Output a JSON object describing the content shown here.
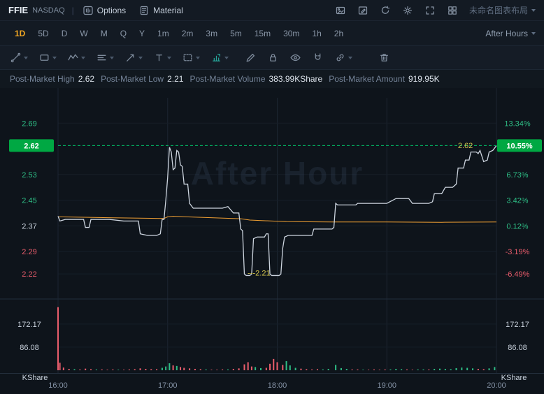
{
  "header": {
    "symbol": "FFIE",
    "exchange": "NASDAQ",
    "divider": "|",
    "tabs": [
      {
        "label": "Options"
      },
      {
        "label": "Material"
      }
    ],
    "layout_name": "未命名图表布局",
    "icons": [
      "snapshot-icon",
      "edit-icon",
      "refresh-icon",
      "settings-icon",
      "fullscreen-icon",
      "layout-grid-icon"
    ]
  },
  "timeframe_bar": {
    "items": [
      "1D",
      "5D",
      "D",
      "W",
      "M",
      "Q",
      "Y",
      "1m",
      "2m",
      "3m",
      "5m",
      "15m",
      "30m",
      "1h",
      "2h"
    ],
    "active": "1D",
    "session_selector": "After Hours"
  },
  "drawing_toolbar": {
    "tools": [
      "trend-line-tool",
      "shape-tool",
      "wave-tool",
      "lines-tool",
      "ray-tool",
      "text-tool",
      "region-tool",
      "position-tool",
      "brush-tool",
      "lock-tool",
      "visibility-tool",
      "magnet-tool",
      "link-tool",
      "delete-tool"
    ]
  },
  "info_bar": {
    "items": [
      {
        "label": "Post-Market High",
        "value": "2.62"
      },
      {
        "label": "Post-Market Low",
        "value": "2.21"
      },
      {
        "label": "Post-Market Volume",
        "value": "383.99KShare"
      },
      {
        "label": "Post-Market Amount",
        "value": "919.95K"
      }
    ]
  },
  "chart_data": {
    "type": "line",
    "session": "after-hours",
    "watermark": "After Hour",
    "x": {
      "labels": [
        "16:00",
        "17:00",
        "18:00",
        "19:00",
        "20:00"
      ],
      "start_min": 0,
      "end_min": 240
    },
    "price_range": [
      2.155,
      2.769
    ],
    "price_rows": [
      {
        "price": "2.69",
        "price_color": "up",
        "pct": "13.34%",
        "pct_color": "up"
      },
      {
        "price": "2.62",
        "pct": "10.55%",
        "current": true
      },
      {
        "price": "2.53",
        "price_color": "up",
        "pct": "6.73%",
        "pct_color": "up"
      },
      {
        "price": "2.45",
        "price_color": "up",
        "pct": "3.42%",
        "pct_color": "up"
      },
      {
        "price": "2.37",
        "price_color": "neutral",
        "pct": "0.12%",
        "pct_color": "up"
      },
      {
        "price": "2.29",
        "price_color": "down",
        "pct": "-3.19%",
        "pct_color": "down"
      },
      {
        "price": "2.22",
        "price_color": "down",
        "pct": "-6.49%",
        "pct_color": "down"
      }
    ],
    "current": {
      "price": "2.62",
      "pct": "10.55%"
    },
    "high_annotation": {
      "t": 223,
      "price": 2.62,
      "label": "2.62"
    },
    "low_annotation": {
      "t": 110,
      "price": 2.21,
      "label": "---2.21"
    },
    "price_series": [
      [
        0,
        2.4
      ],
      [
        1,
        2.385
      ],
      [
        4,
        2.39
      ],
      [
        10,
        2.39
      ],
      [
        14,
        2.39
      ],
      [
        15,
        2.365
      ],
      [
        17,
        2.365
      ],
      [
        18,
        2.39
      ],
      [
        28,
        2.39
      ],
      [
        36,
        2.385
      ],
      [
        44,
        2.385
      ],
      [
        45,
        2.345
      ],
      [
        49,
        2.34
      ],
      [
        54,
        2.34
      ],
      [
        56,
        2.345
      ],
      [
        57,
        2.39
      ],
      [
        58,
        2.39
      ],
      [
        59,
        2.45
      ],
      [
        60,
        2.52
      ],
      [
        61,
        2.615
      ],
      [
        62,
        2.6
      ],
      [
        63,
        2.545
      ],
      [
        64,
        2.55
      ],
      [
        65,
        2.605
      ],
      [
        66,
        2.6
      ],
      [
        67,
        2.56
      ],
      [
        68,
        2.555
      ],
      [
        69,
        2.5
      ],
      [
        71,
        2.5
      ],
      [
        72,
        2.44
      ],
      [
        74,
        2.425
      ],
      [
        90,
        2.425
      ],
      [
        93,
        2.43
      ],
      [
        96,
        2.41
      ],
      [
        99,
        2.41
      ],
      [
        100,
        2.36
      ],
      [
        101,
        2.355
      ],
      [
        102,
        2.22
      ],
      [
        103,
        2.215
      ],
      [
        105,
        2.215
      ],
      [
        106,
        2.22
      ],
      [
        107,
        2.33
      ],
      [
        109,
        2.335
      ],
      [
        113,
        2.335
      ],
      [
        114,
        2.345
      ],
      [
        115,
        2.345
      ],
      [
        116,
        2.22
      ],
      [
        117,
        2.215
      ],
      [
        121,
        2.215
      ],
      [
        122,
        2.22
      ],
      [
        123,
        2.3
      ],
      [
        124,
        2.335
      ],
      [
        126,
        2.34
      ],
      [
        139,
        2.34
      ],
      [
        140,
        2.36
      ],
      [
        150,
        2.36
      ],
      [
        151,
        2.365
      ],
      [
        152,
        2.44
      ],
      [
        153,
        2.435
      ],
      [
        163,
        2.435
      ],
      [
        164,
        2.44
      ],
      [
        172,
        2.44
      ],
      [
        180,
        2.44
      ],
      [
        185,
        2.455
      ],
      [
        192,
        2.455
      ],
      [
        194,
        2.44
      ],
      [
        203,
        2.44
      ],
      [
        205,
        2.445
      ],
      [
        206,
        2.47
      ],
      [
        210,
        2.47
      ],
      [
        212,
        2.49
      ],
      [
        216,
        2.49
      ],
      [
        218,
        2.5
      ],
      [
        219,
        2.55
      ],
      [
        222,
        2.55
      ],
      [
        223,
        2.575
      ],
      [
        225,
        2.575
      ],
      [
        226,
        2.6
      ],
      [
        229,
        2.6
      ],
      [
        230,
        2.595
      ],
      [
        231,
        2.605
      ],
      [
        233,
        2.57
      ],
      [
        235,
        2.575
      ],
      [
        236,
        2.6
      ],
      [
        238,
        2.605
      ],
      [
        240,
        2.62
      ]
    ],
    "baseline_series": [
      [
        0,
        2.398
      ],
      [
        30,
        2.395
      ],
      [
        58,
        2.393
      ],
      [
        60,
        2.398
      ],
      [
        63,
        2.4
      ],
      [
        70,
        2.398
      ],
      [
        100,
        2.392
      ],
      [
        105,
        2.388
      ],
      [
        125,
        2.383
      ],
      [
        150,
        2.382
      ],
      [
        180,
        2.382
      ],
      [
        210,
        2.381
      ],
      [
        240,
        2.382
      ]
    ],
    "volume": {
      "unit": "KShare",
      "axis_labels": [
        {
          "value": 172.17,
          "label": "172.17"
        },
        {
          "value": 86.08,
          "label": "86.08"
        }
      ],
      "bars": [
        [
          0,
          235,
          -1
        ],
        [
          1,
          28,
          -1
        ],
        [
          3,
          10,
          -1
        ],
        [
          6,
          5,
          -1
        ],
        [
          9,
          4,
          1
        ],
        [
          12,
          3,
          -1
        ],
        [
          15,
          6,
          -1
        ],
        [
          18,
          4,
          -1
        ],
        [
          21,
          3,
          1
        ],
        [
          24,
          3,
          -1
        ],
        [
          27,
          2,
          -1
        ],
        [
          30,
          3,
          -1
        ],
        [
          33,
          2,
          1
        ],
        [
          36,
          2,
          -1
        ],
        [
          39,
          3,
          -1
        ],
        [
          42,
          4,
          -1
        ],
        [
          45,
          7,
          -1
        ],
        [
          48,
          5,
          -1
        ],
        [
          51,
          4,
          -1
        ],
        [
          54,
          4,
          -1
        ],
        [
          57,
          9,
          1
        ],
        [
          59,
          14,
          1
        ],
        [
          61,
          26,
          1
        ],
        [
          63,
          18,
          -1
        ],
        [
          65,
          16,
          1
        ],
        [
          67,
          12,
          -1
        ],
        [
          69,
          9,
          -1
        ],
        [
          72,
          7,
          -1
        ],
        [
          75,
          5,
          -1
        ],
        [
          78,
          4,
          -1
        ],
        [
          81,
          3,
          1
        ],
        [
          84,
          2,
          -1
        ],
        [
          87,
          2,
          -1
        ],
        [
          90,
          3,
          -1
        ],
        [
          93,
          3,
          1
        ],
        [
          96,
          5,
          -1
        ],
        [
          99,
          7,
          -1
        ],
        [
          102,
          22,
          -1
        ],
        [
          104,
          30,
          -1
        ],
        [
          106,
          14,
          -1
        ],
        [
          108,
          12,
          1
        ],
        [
          111,
          8,
          1
        ],
        [
          114,
          9,
          -1
        ],
        [
          116,
          24,
          -1
        ],
        [
          118,
          42,
          -1
        ],
        [
          120,
          30,
          -1
        ],
        [
          123,
          20,
          -1
        ],
        [
          125,
          34,
          1
        ],
        [
          127,
          18,
          1
        ],
        [
          130,
          9,
          1
        ],
        [
          133,
          6,
          -1
        ],
        [
          136,
          4,
          -1
        ],
        [
          139,
          3,
          -1
        ],
        [
          142,
          4,
          -1
        ],
        [
          145,
          3,
          1
        ],
        [
          148,
          5,
          1
        ],
        [
          152,
          20,
          1
        ],
        [
          155,
          8,
          1
        ],
        [
          158,
          5,
          1
        ],
        [
          161,
          3,
          -1
        ],
        [
          164,
          3,
          -1
        ],
        [
          167,
          2,
          1
        ],
        [
          170,
          2,
          -1
        ],
        [
          173,
          3,
          -1
        ],
        [
          176,
          2,
          -1
        ],
        [
          179,
          3,
          -1
        ],
        [
          182,
          3,
          1
        ],
        [
          185,
          5,
          1
        ],
        [
          188,
          4,
          1
        ],
        [
          191,
          3,
          -1
        ],
        [
          194,
          2,
          -1
        ],
        [
          197,
          3,
          1
        ],
        [
          200,
          3,
          1
        ],
        [
          203,
          3,
          -1
        ],
        [
          206,
          5,
          1
        ],
        [
          209,
          6,
          1
        ],
        [
          212,
          5,
          1
        ],
        [
          215,
          4,
          1
        ],
        [
          218,
          8,
          1
        ],
        [
          221,
          10,
          1
        ],
        [
          224,
          9,
          1
        ],
        [
          227,
          7,
          1
        ],
        [
          230,
          5,
          -1
        ],
        [
          233,
          4,
          -1
        ],
        [
          236,
          7,
          1
        ],
        [
          239,
          12,
          1
        ]
      ]
    },
    "colors": {
      "up": "#2ebd85",
      "down": "#ea5d6c",
      "neutral_text": "#c9d2dd",
      "axis_text": "#8593a6",
      "line": "#cdd5df",
      "baseline": "#ef9f33",
      "current_line": "#00c16a",
      "current_box": "#00a843",
      "annotation": "#d3c44e",
      "grid": "#1c2531",
      "grid_faint": "#161e28",
      "separator": "#232e3c",
      "watermark": "#3a4a63"
    }
  }
}
